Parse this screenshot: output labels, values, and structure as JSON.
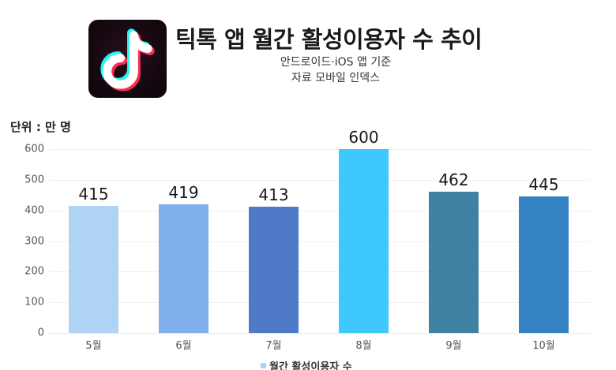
{
  "header": {
    "title": "틱톡 앱 월간 활성이용자 수 추이",
    "subtitle_line1": "안드로이드·iOS 앱 기준",
    "subtitle_line2": "자료 모바일 인덱스",
    "icon": "tiktok-logo-icon"
  },
  "unit_label": "단위 : 만 명",
  "legend": {
    "label": "월간 활성이용자 수",
    "color": "#afd3f3"
  },
  "chart_data": {
    "type": "bar",
    "title": "틱톡 앱 월간 활성이용자 수 추이",
    "subtitle": "안드로이드·iOS 앱 기준 / 자료 모바일 인덱스",
    "xlabel": "",
    "ylabel": "단위 : 만 명",
    "ylim": [
      0,
      600
    ],
    "yticks": [
      0,
      100,
      200,
      300,
      400,
      500,
      600
    ],
    "grid": true,
    "legend_position": "bottom",
    "categories": [
      "5월",
      "6월",
      "7월",
      "8월",
      "9월",
      "10월"
    ],
    "series": [
      {
        "name": "월간 활성이용자 수",
        "values": [
          415,
          419,
          413,
          600,
          462,
          445
        ],
        "colors": [
          "#afd3f3",
          "#7fb0ec",
          "#4f7ac9",
          "#3fc8fb",
          "#3e81a2",
          "#3583c4"
        ]
      }
    ],
    "data_labels": [
      "415",
      "419",
      "413",
      "600",
      "462",
      "445"
    ]
  }
}
